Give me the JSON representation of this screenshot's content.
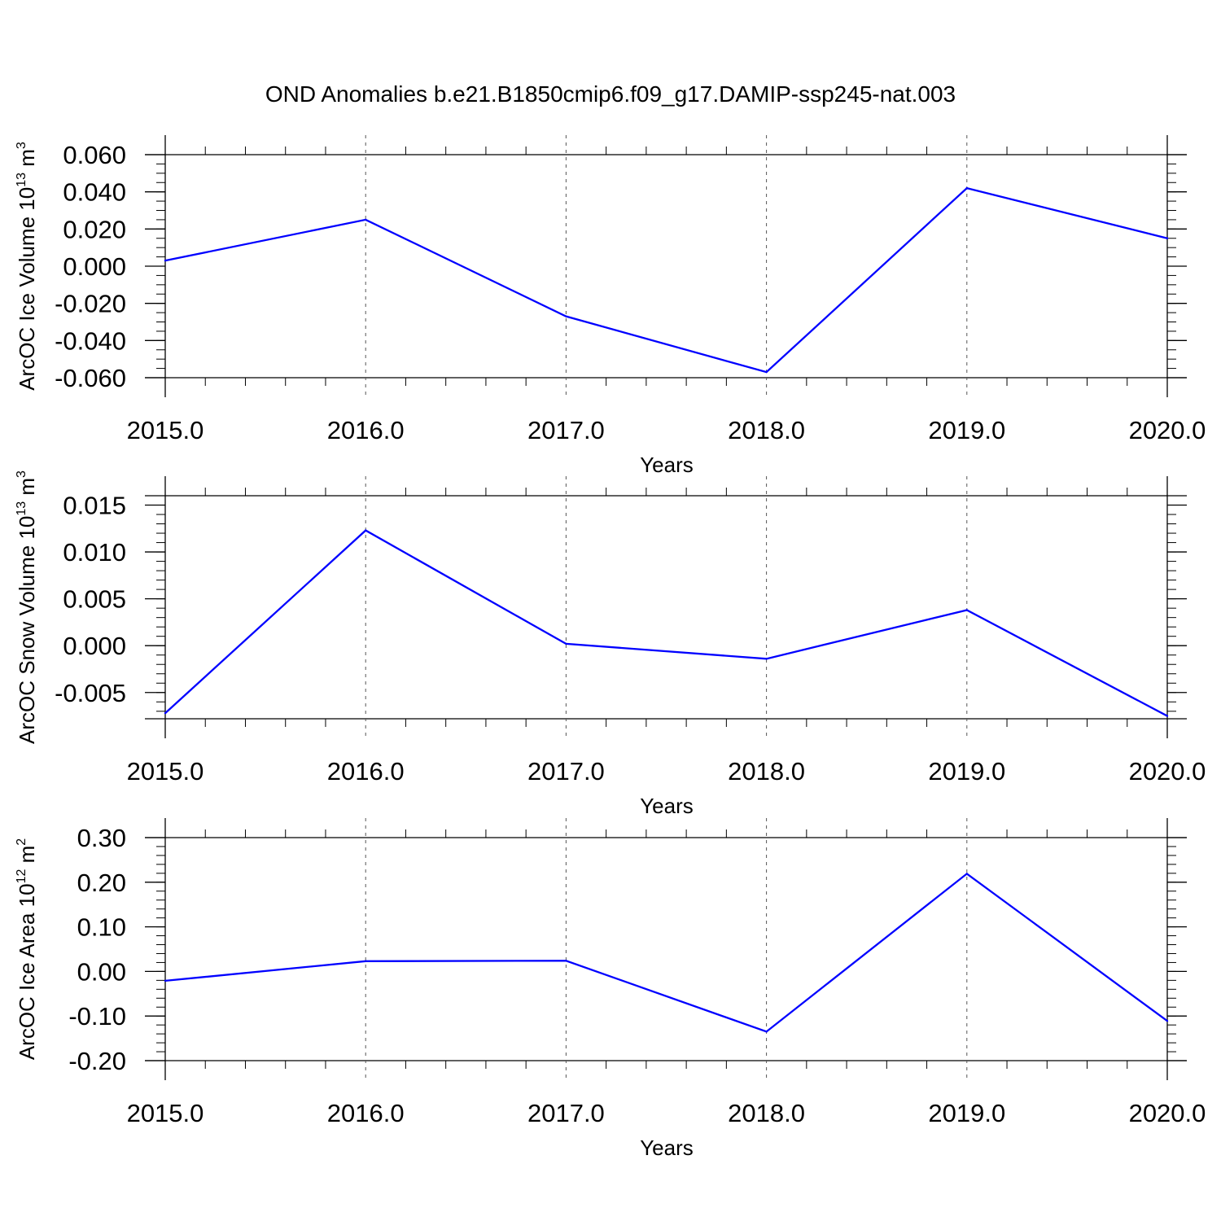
{
  "figure": {
    "title": "OND Anomalies b.e21.B1850cmip6.f09_g17.DAMIP-ssp245-nat.003"
  },
  "chart_data": [
    {
      "type": "line",
      "xlabel": "Years",
      "ylabel": {
        "text": "ArcOC Ice Volume 10",
        "sup": "13",
        "unit": " m",
        "unit_sup": "3"
      },
      "x": [
        2015,
        2016,
        2017,
        2018,
        2019,
        2020
      ],
      "xlim": [
        2015,
        2020
      ],
      "x_ticks": [
        "2015.0",
        "2016.0",
        "2017.0",
        "2018.0",
        "2019.0",
        "2020.0"
      ],
      "ylim": [
        -0.06,
        0.06
      ],
      "y_ticks": [
        {
          "value": 0.06,
          "label": "0.060"
        },
        {
          "value": 0.04,
          "label": "0.040"
        },
        {
          "value": 0.02,
          "label": "0.020"
        },
        {
          "value": 0.0,
          "label": "0.000"
        },
        {
          "value": -0.02,
          "label": "-0.020"
        },
        {
          "value": -0.04,
          "label": "-0.040"
        },
        {
          "value": -0.06,
          "label": "-0.060"
        }
      ],
      "y_minor_step": 0.005,
      "grid": "vertical dashed at major x ticks",
      "series": [
        {
          "values": [
            0.003,
            0.025,
            -0.027,
            -0.057,
            0.042,
            0.015
          ],
          "color": "#0000ff"
        }
      ]
    },
    {
      "type": "line",
      "xlabel": "Years",
      "ylabel": {
        "text": "ArcOC Snow Volume 10",
        "sup": "13",
        "unit": " m",
        "unit_sup": "3"
      },
      "x": [
        2015,
        2016,
        2017,
        2018,
        2019,
        2020
      ],
      "xlim": [
        2015,
        2020
      ],
      "x_ticks": [
        "2015.0",
        "2016.0",
        "2017.0",
        "2018.0",
        "2019.0",
        "2020.0"
      ],
      "ylim": [
        -0.0078,
        0.016
      ],
      "y_ticks": [
        {
          "value": 0.015,
          "label": "0.015"
        },
        {
          "value": 0.01,
          "label": "0.010"
        },
        {
          "value": 0.005,
          "label": "0.005"
        },
        {
          "value": 0.0,
          "label": "0.000"
        },
        {
          "value": -0.005,
          "label": "-0.005"
        }
      ],
      "y_minor_step": 0.001,
      "grid": "vertical dashed at major x ticks",
      "series": [
        {
          "values": [
            -0.0072,
            0.0123,
            0.0002,
            -0.0014,
            0.0038,
            -0.0075
          ],
          "color": "#0000ff"
        }
      ]
    },
    {
      "type": "line",
      "xlabel": "Years",
      "ylabel": {
        "text": "ArcOC Ice Area 10",
        "sup": "12",
        "unit": " m",
        "unit_sup": "2"
      },
      "x": [
        2015,
        2016,
        2017,
        2018,
        2019,
        2020
      ],
      "xlim": [
        2015,
        2020
      ],
      "x_ticks": [
        "2015.0",
        "2016.0",
        "2017.0",
        "2018.0",
        "2019.0",
        "2020.0"
      ],
      "ylim": [
        -0.2,
        0.3
      ],
      "y_ticks": [
        {
          "value": 0.3,
          "label": "0.30"
        },
        {
          "value": 0.2,
          "label": "0.20"
        },
        {
          "value": 0.1,
          "label": "0.10"
        },
        {
          "value": 0.0,
          "label": "0.00"
        },
        {
          "value": -0.1,
          "label": "-0.10"
        },
        {
          "value": -0.2,
          "label": "-0.20"
        }
      ],
      "y_minor_step": 0.02,
      "grid": "vertical dashed at major x ticks",
      "series": [
        {
          "values": [
            -0.021,
            0.023,
            0.024,
            -0.135,
            0.219,
            -0.111
          ],
          "color": "#0000ff"
        }
      ]
    }
  ]
}
